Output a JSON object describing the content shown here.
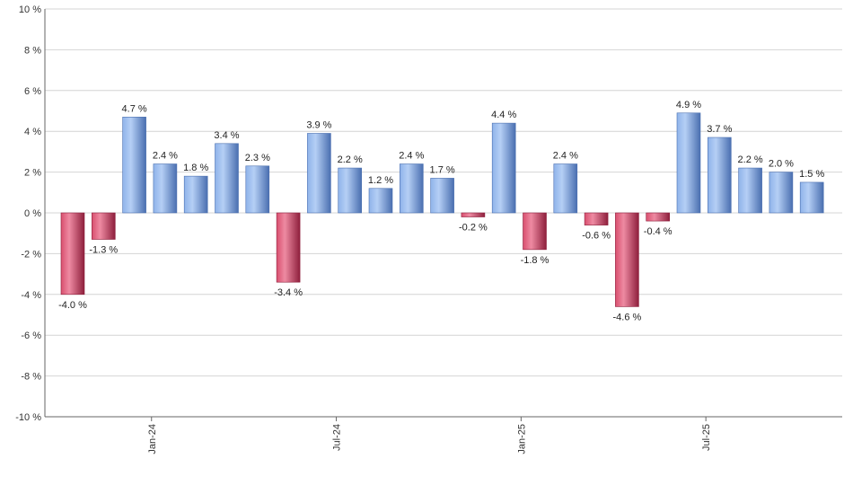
{
  "chart_data": {
    "type": "bar",
    "title": "",
    "xlabel": "",
    "ylabel": "",
    "ylim": [
      -10,
      10
    ],
    "y_ticks": [
      10,
      8,
      6,
      4,
      2,
      0,
      -2,
      -4,
      -6,
      -8,
      -10
    ],
    "y_tick_suffix": " %",
    "grid": true,
    "values": [
      -4.0,
      -1.3,
      4.7,
      2.4,
      1.8,
      3.4,
      2.3,
      -3.4,
      3.9,
      2.2,
      1.2,
      2.4,
      1.7,
      -0.2,
      4.4,
      -1.8,
      2.4,
      -0.6,
      -4.6,
      -0.4,
      4.9,
      3.7,
      2.2,
      2.0,
      1.5
    ],
    "x_tick_labels": [
      {
        "label": "Jan-24",
        "after_bar": 3
      },
      {
        "label": "Jul-24",
        "after_bar": 9
      },
      {
        "label": "Jan-25",
        "after_bar": 15
      },
      {
        "label": "Jul-25",
        "after_bar": 21
      }
    ],
    "colors": {
      "positive": "#6b93d6",
      "positive_light": "#a9c6f2",
      "positive_dark": "#4a6fb0",
      "negative": "#c93a5a",
      "negative_light": "#e87a94",
      "negative_dark": "#8e1f3c"
    }
  }
}
